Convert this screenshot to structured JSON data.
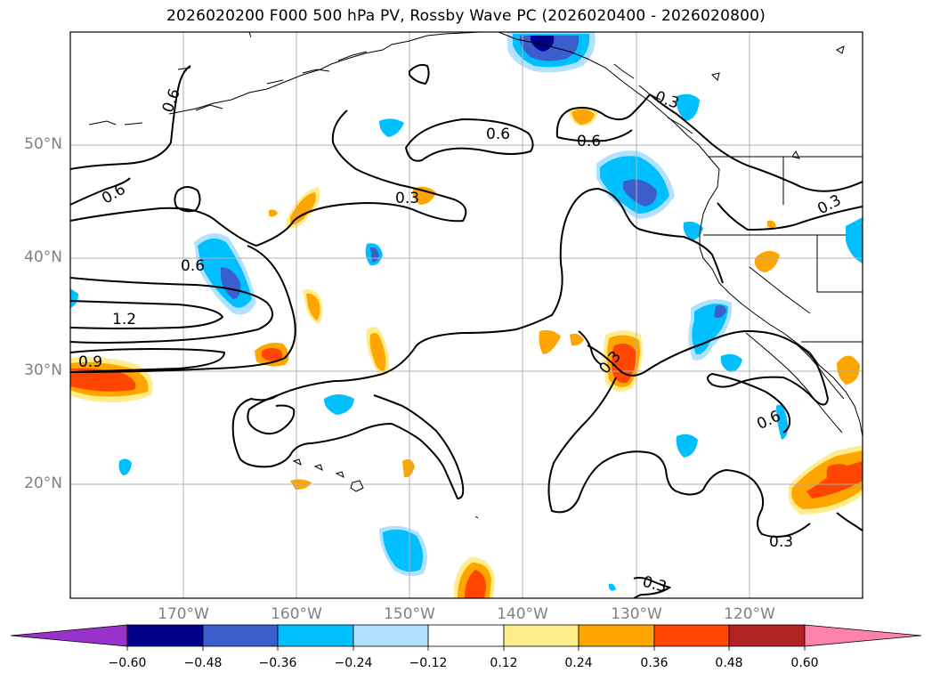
{
  "title": "2026020200 F000 500 hPa PV, Rossby Wave PC (2026020400 - 2026020800)",
  "map": {
    "lat_labels": [
      "50°N",
      "40°N",
      "30°N",
      "20°N"
    ],
    "lon_labels": [
      "170°W",
      "160°W",
      "150°W",
      "140°W",
      "130°W",
      "120°W"
    ],
    "contour_labels": [
      "0.6",
      "0.6",
      "0.6",
      "0.6",
      "1.2",
      "0.9",
      "0.3",
      "0.6",
      "0.3",
      "0.3",
      "0.3",
      "0.6",
      "0.3",
      "0.3"
    ]
  },
  "colorbar": {
    "ticks": [
      "−0.60",
      "−0.48",
      "−0.36",
      "−0.24",
      "−0.12",
      "0.12",
      "0.24",
      "0.36",
      "0.48",
      "0.60"
    ],
    "colors": [
      "#9932cc",
      "#00008b",
      "#3a5fcd",
      "#00bfff",
      "#b0e2ff",
      "#ffffff",
      "#ffec8b",
      "#ffa500",
      "#ff4500",
      "#b22222",
      "#ff82ab"
    ]
  }
}
